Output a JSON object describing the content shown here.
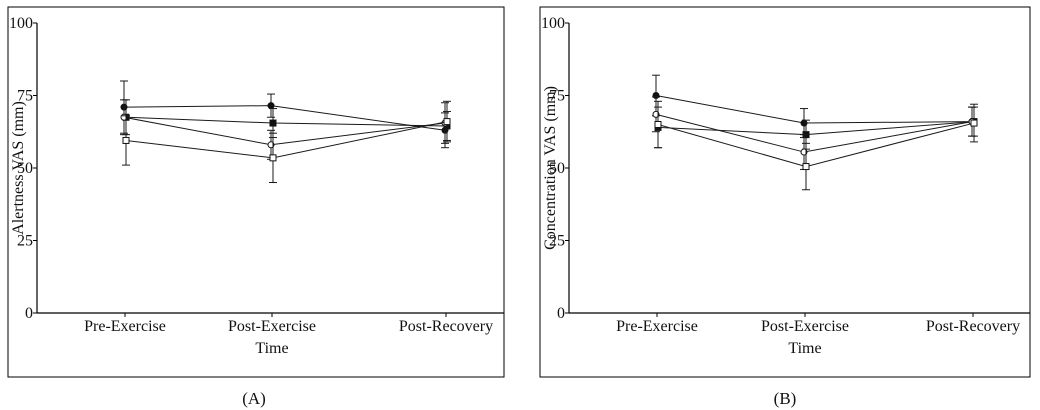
{
  "chart_data": [
    {
      "type": "line",
      "panel_label": "(A)",
      "ylabel": "Alertness VAS (mm)",
      "xlabel": "Time",
      "categories": [
        "Pre-Exercise",
        "Post-Exercise",
        "Post-Recovery"
      ],
      "ylim": [
        0,
        100
      ],
      "yticks": [
        "0",
        "25",
        "50",
        "75",
        "100"
      ],
      "grid": false,
      "series": [
        {
          "marker": "filled-circle",
          "values": [
            71,
            71.5,
            63
          ],
          "errors": [
            9,
            4,
            6
          ]
        },
        {
          "marker": "filled-square",
          "values": [
            67.5,
            65.5,
            64.5
          ],
          "errors": [
            6,
            5,
            5
          ]
        },
        {
          "marker": "open-circle",
          "values": [
            67.5,
            58,
            65.5
          ],
          "errors": [
            6,
            5,
            7
          ]
        },
        {
          "marker": "open-square",
          "values": [
            59.5,
            53.5,
            66
          ],
          "errors": [
            8.5,
            8.5,
            7
          ]
        }
      ]
    },
    {
      "type": "line",
      "panel_label": "(B)",
      "ylabel": "Concentration VAS (mm)",
      "xlabel": "Time",
      "categories": [
        "Pre-Exercise",
        "Post-Exercise",
        "Post-Recovery"
      ],
      "ylim": [
        0,
        100
      ],
      "yticks": [
        "0",
        "25",
        "50",
        "75",
        "100"
      ],
      "grid": false,
      "series": [
        {
          "marker": "filled-circle",
          "values": [
            75,
            65.5,
            66
          ],
          "errors": [
            7,
            5,
            5
          ]
        },
        {
          "marker": "filled-square",
          "values": [
            64,
            61.5,
            66
          ],
          "errors": [
            7,
            5,
            5
          ]
        },
        {
          "marker": "open-circle",
          "values": [
            68.5,
            55.5,
            66
          ],
          "errors": [
            6,
            6,
            5
          ]
        },
        {
          "marker": "open-square",
          "values": [
            65,
            50.5,
            65.5
          ],
          "errors": [
            8,
            8,
            6.5
          ]
        }
      ]
    }
  ]
}
